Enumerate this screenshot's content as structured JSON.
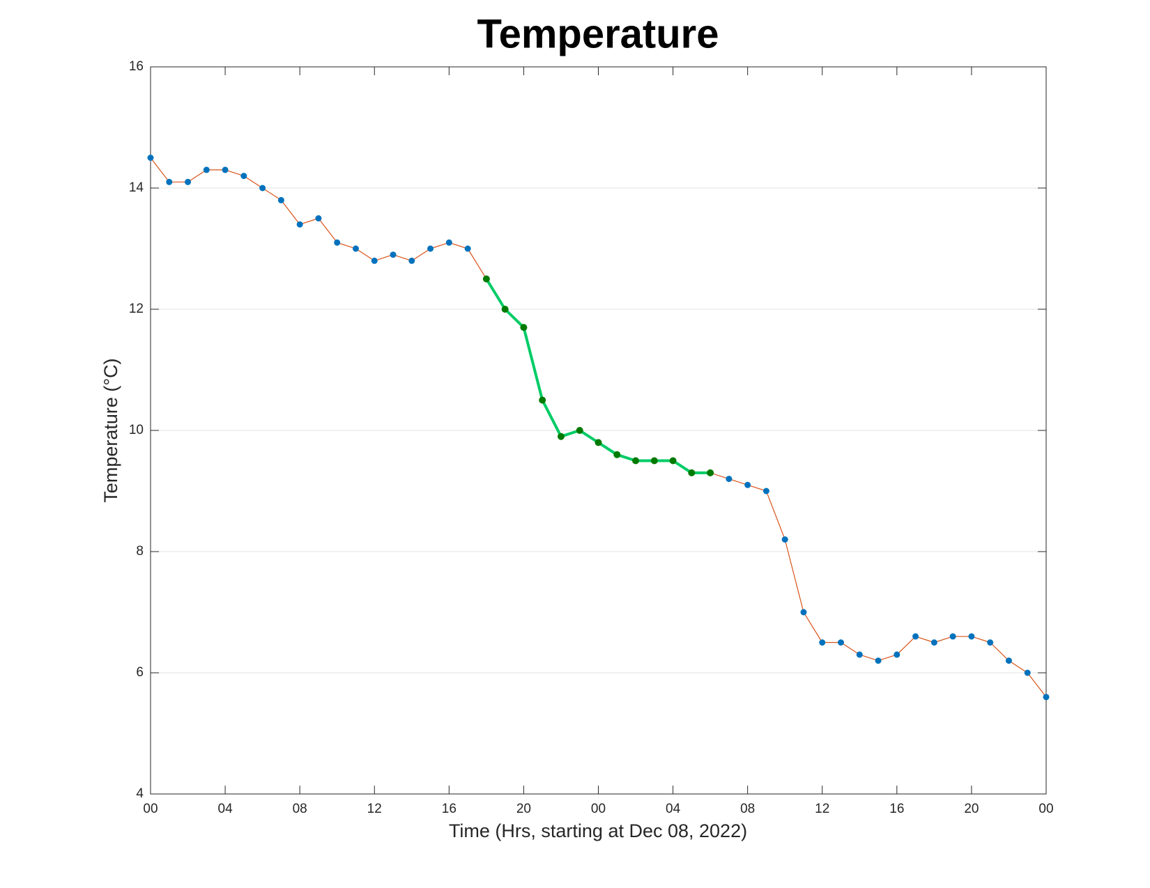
{
  "chart_data": {
    "type": "line",
    "title": "Temperature",
    "xlabel": "Time (Hrs, starting at Dec 08, 2022)",
    "ylabel": "Temperature (°C)",
    "x": [
      0,
      1,
      2,
      3,
      4,
      5,
      6,
      7,
      8,
      9,
      10,
      11,
      12,
      13,
      14,
      15,
      16,
      17,
      18,
      19,
      20,
      21,
      22,
      23,
      24,
      25,
      26,
      27,
      28,
      29,
      30,
      31,
      32,
      33,
      34,
      35,
      36,
      37,
      38,
      39,
      40,
      41,
      42,
      43,
      44,
      45,
      46,
      47,
      48
    ],
    "series": [
      {
        "color": "#d95319",
        "marker_color": "#0072bd",
        "line_width": 1.2,
        "values": [
          14.5,
          14.1,
          14.1,
          14.3,
          14.3,
          14.2,
          14.0,
          13.8,
          13.4,
          13.5,
          13.1,
          13.0,
          12.8,
          12.9,
          12.8,
          13.0,
          13.1,
          13.0,
          12.5,
          12.0,
          11.7,
          10.5,
          9.9,
          10.0,
          9.8,
          9.6,
          9.5,
          9.5,
          9.5,
          9.3,
          9.3,
          9.2,
          9.1,
          9.0,
          8.2,
          7.0,
          6.5,
          6.5,
          6.3,
          6.2,
          6.3,
          6.6,
          6.5,
          6.6,
          6.6,
          6.5,
          6.2,
          6.0,
          5.6
        ]
      },
      {
        "color": "#00cc66",
        "marker_color": "#007a00",
        "line_width": 4,
        "values": [
          null,
          null,
          null,
          null,
          null,
          null,
          null,
          null,
          null,
          null,
          null,
          null,
          null,
          null,
          null,
          null,
          null,
          null,
          12.5,
          12.0,
          11.7,
          10.5,
          9.9,
          10.0,
          9.8,
          9.6,
          9.5,
          9.5,
          9.5,
          9.3,
          9.3,
          null,
          null,
          null,
          null,
          null,
          null,
          null,
          null,
          null,
          null,
          null,
          null,
          null,
          null,
          null,
          null,
          null,
          null
        ]
      }
    ],
    "xlim": [
      0,
      48
    ],
    "xticks": [
      {
        "value": 0,
        "label": "00"
      },
      {
        "value": 4,
        "label": "04"
      },
      {
        "value": 8,
        "label": "08"
      },
      {
        "value": 12,
        "label": "12"
      },
      {
        "value": 16,
        "label": "16"
      },
      {
        "value": 20,
        "label": "20"
      },
      {
        "value": 24,
        "label": "00"
      },
      {
        "value": 28,
        "label": "04"
      },
      {
        "value": 32,
        "label": "08"
      },
      {
        "value": 36,
        "label": "12"
      },
      {
        "value": 40,
        "label": "16"
      },
      {
        "value": 44,
        "label": "20"
      },
      {
        "value": 48,
        "label": "00"
      }
    ],
    "ylim": [
      4,
      16
    ],
    "yticks": [
      4,
      6,
      8,
      10,
      12,
      14,
      16
    ],
    "grid": true
  }
}
